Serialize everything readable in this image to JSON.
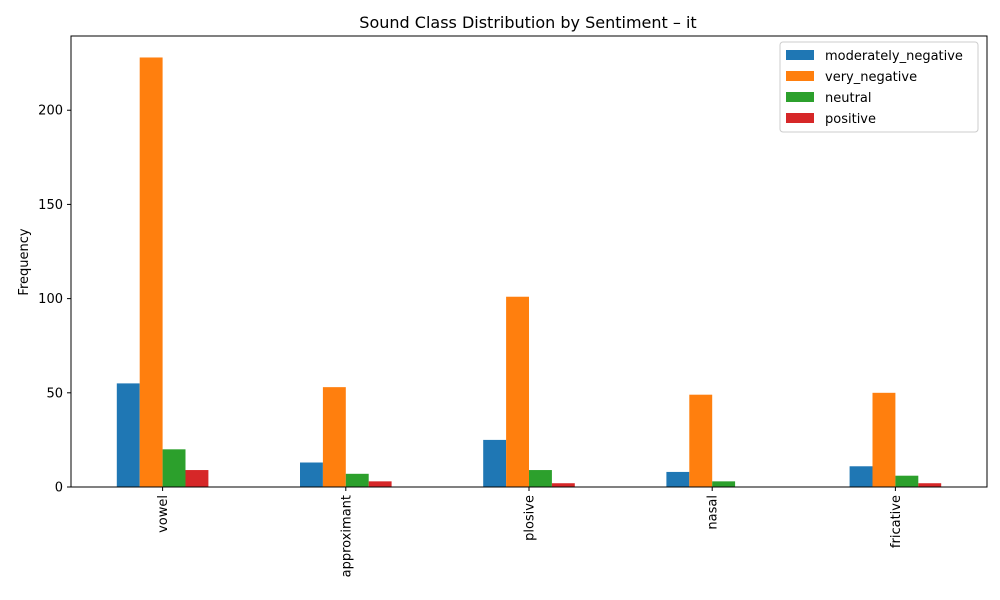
{
  "chart_data": {
    "type": "bar",
    "title": "Sound Class Distribution by Sentiment – it",
    "xlabel": "",
    "ylabel": "Frequency",
    "categories": [
      "vowel",
      "approximant",
      "plosive",
      "nasal",
      "fricative"
    ],
    "series": [
      {
        "name": "moderately_negative",
        "color": "#1f77b4",
        "values": [
          55,
          13,
          25,
          8,
          11
        ]
      },
      {
        "name": "very_negative",
        "color": "#ff7f0e",
        "values": [
          228,
          53,
          101,
          49,
          50
        ]
      },
      {
        "name": "neutral",
        "color": "#2ca02c",
        "values": [
          20,
          7,
          9,
          3,
          6
        ]
      },
      {
        "name": "positive",
        "color": "#d62728",
        "values": [
          9,
          3,
          2,
          0,
          2
        ]
      }
    ],
    "ylim": [
      0,
      239.4
    ],
    "yticks": [
      0,
      50,
      100,
      150,
      200
    ],
    "grid": false,
    "legend_position": "top-right",
    "x_tick_rotation": "vertical"
  }
}
